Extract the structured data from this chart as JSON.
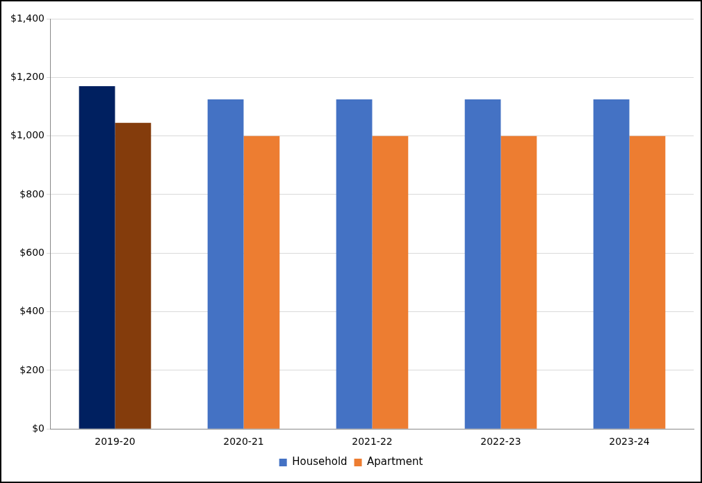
{
  "chart_data": {
    "type": "bar",
    "categories": [
      "2019-20",
      "2020-21",
      "2021-22",
      "2022-23",
      "2023-24"
    ],
    "series": [
      {
        "name": "Household",
        "color": "#4472c4",
        "colors": [
          "#002060",
          "#4472c4",
          "#4472c4",
          "#4472c4",
          "#4472c4"
        ],
        "values": [
          1170,
          1125,
          1125,
          1125,
          1125
        ]
      },
      {
        "name": "Apartment",
        "color": "#ed7d31",
        "colors": [
          "#843c0c",
          "#ed7d31",
          "#ed7d31",
          "#ed7d31",
          "#ed7d31"
        ],
        "values": [
          1045,
          1000,
          1000,
          1000,
          1000
        ]
      }
    ],
    "ylim": [
      0,
      1400
    ],
    "yticks": [
      {
        "value": 0,
        "label": "$0"
      },
      {
        "value": 200,
        "label": "$200"
      },
      {
        "value": 400,
        "label": "$400"
      },
      {
        "value": 600,
        "label": "$600"
      },
      {
        "value": 800,
        "label": "$800"
      },
      {
        "value": 1000,
        "label": "$1,000"
      },
      {
        "value": 1200,
        "label": "$1,200"
      },
      {
        "value": 1400,
        "label": "$1,400"
      }
    ],
    "grid": "y",
    "legend": "bottom"
  }
}
